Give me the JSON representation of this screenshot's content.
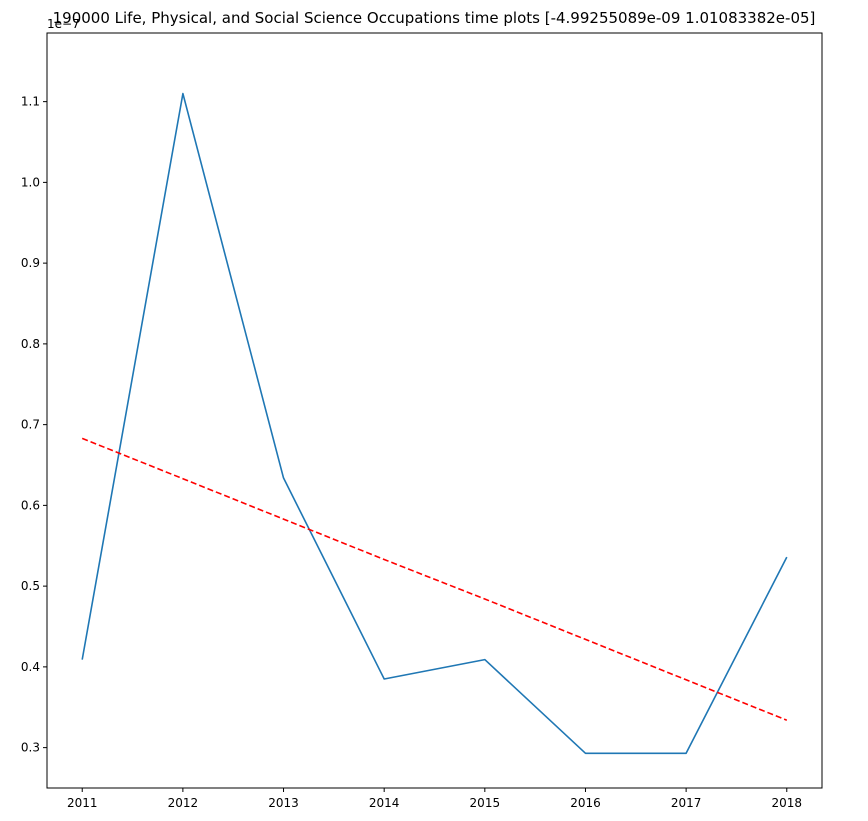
{
  "chart_data": {
    "type": "line",
    "title": "190000 Life, Physical, and Social Science Occupations time plots [-4.99255089e-09  1.01083382e-05]",
    "xlabel": "",
    "ylabel": "",
    "y_offset_label": "1e−7",
    "x": [
      2011,
      2012,
      2013,
      2014,
      2015,
      2016,
      2017,
      2018
    ],
    "x_tick_labels": [
      "2011",
      "2012",
      "2013",
      "2014",
      "2015",
      "2016",
      "2017",
      "2018"
    ],
    "y_ticks": [
      0.3,
      0.4,
      0.5,
      0.6,
      0.7,
      0.8,
      0.9,
      1.0,
      1.1
    ],
    "y_tick_labels": [
      "0.3",
      "0.4",
      "0.5",
      "0.6",
      "0.7",
      "0.8",
      "0.9",
      "1.0",
      "1.1"
    ],
    "xlim": [
      2010.65,
      2018.35
    ],
    "ylim": [
      0.25,
      1.185
    ],
    "grid": false,
    "series": [
      {
        "color": "#1f77b4",
        "linestyle": "solid",
        "values": [
          0.409,
          1.11,
          0.634,
          0.385,
          0.409,
          0.293,
          0.293,
          0.536
        ]
      },
      {
        "color": "#ff0000",
        "linestyle": "dashed",
        "values": [
          0.683,
          0.633,
          0.583,
          0.533,
          0.484,
          0.434,
          0.384,
          0.334
        ]
      }
    ]
  }
}
